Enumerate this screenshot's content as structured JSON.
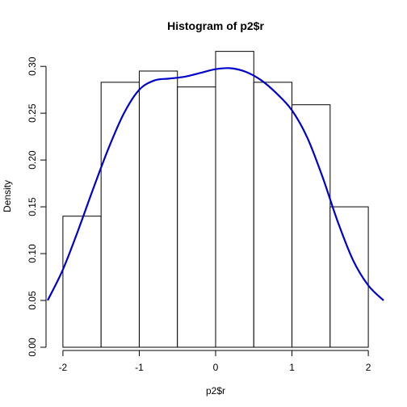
{
  "chart_data": {
    "type": "bar",
    "title": "Histogram of p2$r",
    "xlabel": "p2$r",
    "ylabel": "Density",
    "xlim": [
      -2.2,
      2.2
    ],
    "ylim": [
      0,
      0.32
    ],
    "x_ticks": [
      "-2",
      "-1",
      "0",
      "1",
      "2"
    ],
    "y_ticks": [
      "0.00",
      "0.05",
      "0.10",
      "0.15",
      "0.20",
      "0.25",
      "0.30"
    ],
    "bins": [
      {
        "x0": -2.0,
        "x1": -1.5,
        "density": 0.14
      },
      {
        "x0": -1.5,
        "x1": -1.0,
        "density": 0.283
      },
      {
        "x0": -1.0,
        "x1": -0.5,
        "density": 0.295
      },
      {
        "x0": -0.5,
        "x1": 0.0,
        "density": 0.278
      },
      {
        "x0": 0.0,
        "x1": 0.5,
        "density": 0.316
      },
      {
        "x0": 0.5,
        "x1": 1.0,
        "density": 0.283
      },
      {
        "x0": 1.0,
        "x1": 1.5,
        "density": 0.259
      },
      {
        "x0": 1.5,
        "x1": 2.0,
        "density": 0.15
      }
    ],
    "density_curve": {
      "color": "#0000cd",
      "x": [
        -2.2,
        -2.0,
        -1.8,
        -1.6,
        -1.4,
        -1.2,
        -1.0,
        -0.8,
        -0.6,
        -0.4,
        -0.2,
        0.0,
        0.2,
        0.4,
        0.6,
        0.8,
        1.0,
        1.2,
        1.4,
        1.6,
        1.8,
        2.0,
        2.2
      ],
      "y": [
        0.05,
        0.083,
        0.125,
        0.17,
        0.213,
        0.25,
        0.275,
        0.285,
        0.287,
        0.289,
        0.293,
        0.297,
        0.298,
        0.294,
        0.285,
        0.271,
        0.253,
        0.224,
        0.182,
        0.134,
        0.093,
        0.066,
        0.05
      ]
    },
    "bar_fill": "#ffffff",
    "bar_stroke": "#000000",
    "grid": false,
    "legend": "none"
  }
}
